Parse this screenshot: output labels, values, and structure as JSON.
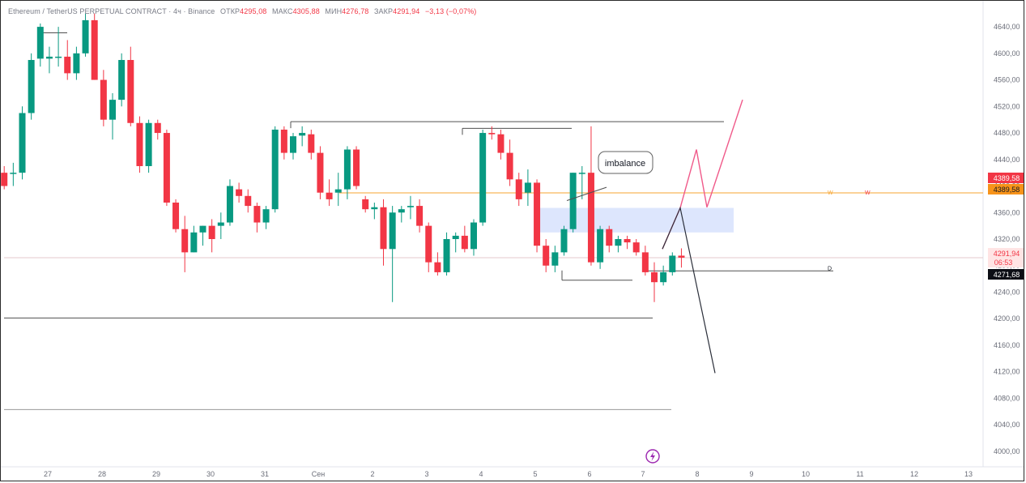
{
  "legend": {
    "symbol": "Ethereum / TetherUS PERPETUAL CONTRACT · 4ч · Binance",
    "open_label": "ОТКР",
    "open": "4295,08",
    "high_label": "МАКС",
    "high": "4305,88",
    "low_label": "МИН",
    "low": "4276,78",
    "close_label": "ЗАКР",
    "close": "4291,94",
    "change": "−3,13 (−0,07%)"
  },
  "price_tags": {
    "level_top": "4389,58",
    "level_bottom": "4389,58",
    "last_price": "4291,94",
    "countdown": "06:53",
    "crosshair": "4271,68"
  },
  "annotation_text": "imbalance",
  "line_labels": {
    "w_left": "W",
    "w_right": "W",
    "d": "D"
  },
  "colors": {
    "up": "#089981",
    "down": "#f23645",
    "orange_line": "#f7a530",
    "imbalance_fill": "#dde6fd",
    "projection_pink": "#f05a8a",
    "projection_dark": "#2a2e39",
    "purple_icon": "#9c27b0"
  },
  "icons": {
    "replay": "lightning-icon"
  },
  "chart_data": {
    "type": "candlestick",
    "y_axis": {
      "ticks": [
        "4640,00",
        "4600,00",
        "4560,00",
        "4520,00",
        "4480,00",
        "4440,00",
        "4400,00",
        "4360,00",
        "4320,00",
        "4280,00",
        "4240,00",
        "4200,00",
        "4160,00",
        "4120,00",
        "4080,00",
        "4040,00",
        "4000,00"
      ],
      "range": [
        3985,
        4660
      ]
    },
    "x_axis": {
      "ticks": [
        "27",
        "28",
        "29",
        "30",
        "31",
        "Сен",
        "2",
        "3",
        "4",
        "5",
        "6",
        "7",
        "8",
        "9",
        "10",
        "11",
        "12",
        "13"
      ]
    },
    "candles": [
      {
        "o": 4420,
        "h": 4430,
        "l": 4395,
        "c": 4400
      },
      {
        "o": 4420,
        "h": 4435,
        "l": 4400,
        "c": 4420
      },
      {
        "o": 4420,
        "h": 4520,
        "l": 4410,
        "c": 4510
      },
      {
        "o": 4510,
        "h": 4600,
        "l": 4500,
        "c": 4590
      },
      {
        "o": 4592,
        "h": 4645,
        "l": 4580,
        "c": 4640
      },
      {
        "o": 4592,
        "h": 4610,
        "l": 4570,
        "c": 4595
      },
      {
        "o": 4595,
        "h": 4640,
        "l": 4580,
        "c": 4595
      },
      {
        "o": 4595,
        "h": 4620,
        "l": 4560,
        "c": 4570
      },
      {
        "o": 4570,
        "h": 4610,
        "l": 4560,
        "c": 4600
      },
      {
        "o": 4600,
        "h": 4660,
        "l": 4595,
        "c": 4650
      },
      {
        "o": 4650,
        "h": 4660,
        "l": 4560,
        "c": 4560
      },
      {
        "o": 4560,
        "h": 4575,
        "l": 4490,
        "c": 4500
      },
      {
        "o": 4500,
        "h": 4540,
        "l": 4470,
        "c": 4530
      },
      {
        "o": 4530,
        "h": 4600,
        "l": 4520,
        "c": 4590
      },
      {
        "o": 4590,
        "h": 4610,
        "l": 4490,
        "c": 4495
      },
      {
        "o": 4495,
        "h": 4505,
        "l": 4420,
        "c": 4430
      },
      {
        "o": 4430,
        "h": 4500,
        "l": 4420,
        "c": 4495
      },
      {
        "o": 4495,
        "h": 4500,
        "l": 4470,
        "c": 4480
      },
      {
        "o": 4480,
        "h": 4485,
        "l": 4370,
        "c": 4375
      },
      {
        "o": 4375,
        "h": 4380,
        "l": 4330,
        "c": 4335
      },
      {
        "o": 4335,
        "h": 4355,
        "l": 4270,
        "c": 4300
      },
      {
        "o": 4300,
        "h": 4340,
        "l": 4300,
        "c": 4330
      },
      {
        "o": 4330,
        "h": 4340,
        "l": 4310,
        "c": 4340
      },
      {
        "o": 4340,
        "h": 4350,
        "l": 4300,
        "c": 4320
      },
      {
        "o": 4340,
        "h": 4360,
        "l": 4320,
        "c": 4345
      },
      {
        "o": 4345,
        "h": 4410,
        "l": 4340,
        "c": 4400
      },
      {
        "o": 4395,
        "h": 4405,
        "l": 4375,
        "c": 4385
      },
      {
        "o": 4385,
        "h": 4395,
        "l": 4360,
        "c": 4370
      },
      {
        "o": 4370,
        "h": 4375,
        "l": 4330,
        "c": 4345
      },
      {
        "o": 4345,
        "h": 4370,
        "l": 4335,
        "c": 4365
      },
      {
        "o": 4365,
        "h": 4490,
        "l": 4360,
        "c": 4485
      },
      {
        "o": 4485,
        "h": 4490,
        "l": 4440,
        "c": 4450
      },
      {
        "o": 4450,
        "h": 4480,
        "l": 4440,
        "c": 4475
      },
      {
        "o": 4476,
        "h": 4490,
        "l": 4460,
        "c": 4480
      },
      {
        "o": 4478,
        "h": 4485,
        "l": 4440,
        "c": 4450
      },
      {
        "o": 4450,
        "h": 4460,
        "l": 4380,
        "c": 4390
      },
      {
        "o": 4390,
        "h": 4410,
        "l": 4370,
        "c": 4380
      },
      {
        "o": 4390,
        "h": 4420,
        "l": 4370,
        "c": 4395
      },
      {
        "o": 4395,
        "h": 4460,
        "l": 4380,
        "c": 4455
      },
      {
        "o": 4455,
        "h": 4460,
        "l": 4395,
        "c": 4400
      },
      {
        "o": 4380,
        "h": 4385,
        "l": 4360,
        "c": 4365
      },
      {
        "o": 4365,
        "h": 4375,
        "l": 4350,
        "c": 4368
      },
      {
        "o": 4368,
        "h": 4380,
        "l": 4280,
        "c": 4305
      },
      {
        "o": 4305,
        "h": 4370,
        "l": 4225,
        "c": 4360
      },
      {
        "o": 4360,
        "h": 4370,
        "l": 4345,
        "c": 4365
      },
      {
        "o": 4368,
        "h": 4385,
        "l": 4350,
        "c": 4370
      },
      {
        "o": 4370,
        "h": 4380,
        "l": 4330,
        "c": 4340
      },
      {
        "o": 4340,
        "h": 4345,
        "l": 4270,
        "c": 4285
      },
      {
        "o": 4285,
        "h": 4300,
        "l": 4265,
        "c": 4270
      },
      {
        "o": 4270,
        "h": 4330,
        "l": 4265,
        "c": 4320
      },
      {
        "o": 4320,
        "h": 4330,
        "l": 4300,
        "c": 4325
      },
      {
        "o": 4325,
        "h": 4340,
        "l": 4300,
        "c": 4305
      },
      {
        "o": 4305,
        "h": 4350,
        "l": 4295,
        "c": 4345
      },
      {
        "o": 4345,
        "h": 4485,
        "l": 4340,
        "c": 4480
      },
      {
        "o": 4480,
        "h": 4490,
        "l": 4470,
        "c": 4478
      },
      {
        "o": 4478,
        "h": 4485,
        "l": 4440,
        "c": 4450
      },
      {
        "o": 4450,
        "h": 4470,
        "l": 4400,
        "c": 4410
      },
      {
        "o": 4410,
        "h": 4420,
        "l": 4370,
        "c": 4380
      },
      {
        "o": 4390,
        "h": 4425,
        "l": 4370,
        "c": 4405
      },
      {
        "o": 4405,
        "h": 4410,
        "l": 4300,
        "c": 4310
      },
      {
        "o": 4310,
        "h": 4320,
        "l": 4270,
        "c": 4280
      },
      {
        "o": 4280,
        "h": 4310,
        "l": 4270,
        "c": 4300
      },
      {
        "o": 4300,
        "h": 4340,
        "l": 4295,
        "c": 4335
      },
      {
        "o": 4335,
        "h": 4420,
        "l": 4330,
        "c": 4420
      },
      {
        "o": 4420,
        "h": 4430,
        "l": 4380,
        "c": 4420
      },
      {
        "o": 4420,
        "h": 4490,
        "l": 4280,
        "c": 4285
      },
      {
        "o": 4285,
        "h": 4340,
        "l": 4275,
        "c": 4335
      },
      {
        "o": 4335,
        "h": 4340,
        "l": 4300,
        "c": 4310
      },
      {
        "o": 4310,
        "h": 4325,
        "l": 4300,
        "c": 4320
      },
      {
        "o": 4320,
        "h": 4325,
        "l": 4305,
        "c": 4315
      },
      {
        "o": 4315,
        "h": 4320,
        "l": 4295,
        "c": 4300
      },
      {
        "o": 4300,
        "h": 4310,
        "l": 4265,
        "c": 4270
      },
      {
        "o": 4270,
        "h": 4285,
        "l": 4225,
        "c": 4255
      },
      {
        "o": 4255,
        "h": 4280,
        "l": 4250,
        "c": 4270
      },
      {
        "o": 4270,
        "h": 4300,
        "l": 4265,
        "c": 4295
      },
      {
        "o": 4295,
        "h": 4306,
        "l": 4277,
        "c": 4292
      }
    ],
    "levels": [
      {
        "name": "range-high",
        "price": 4497
      },
      {
        "name": "local-high-box",
        "price": 4487
      },
      {
        "name": "orange-level",
        "price": 4389.58
      },
      {
        "name": "last-price",
        "price": 4291.94
      },
      {
        "name": "d-level",
        "price": 4272
      },
      {
        "name": "low-1",
        "price": 4201
      },
      {
        "name": "low-2",
        "price": 4063
      }
    ],
    "imbalance_zone": {
      "top": 4367,
      "bottom": 4330
    },
    "projections": {
      "bullish": [
        4305,
        4367,
        4455,
        4368,
        4530
      ],
      "bearish": [
        4305,
        4367,
        4118
      ]
    }
  }
}
